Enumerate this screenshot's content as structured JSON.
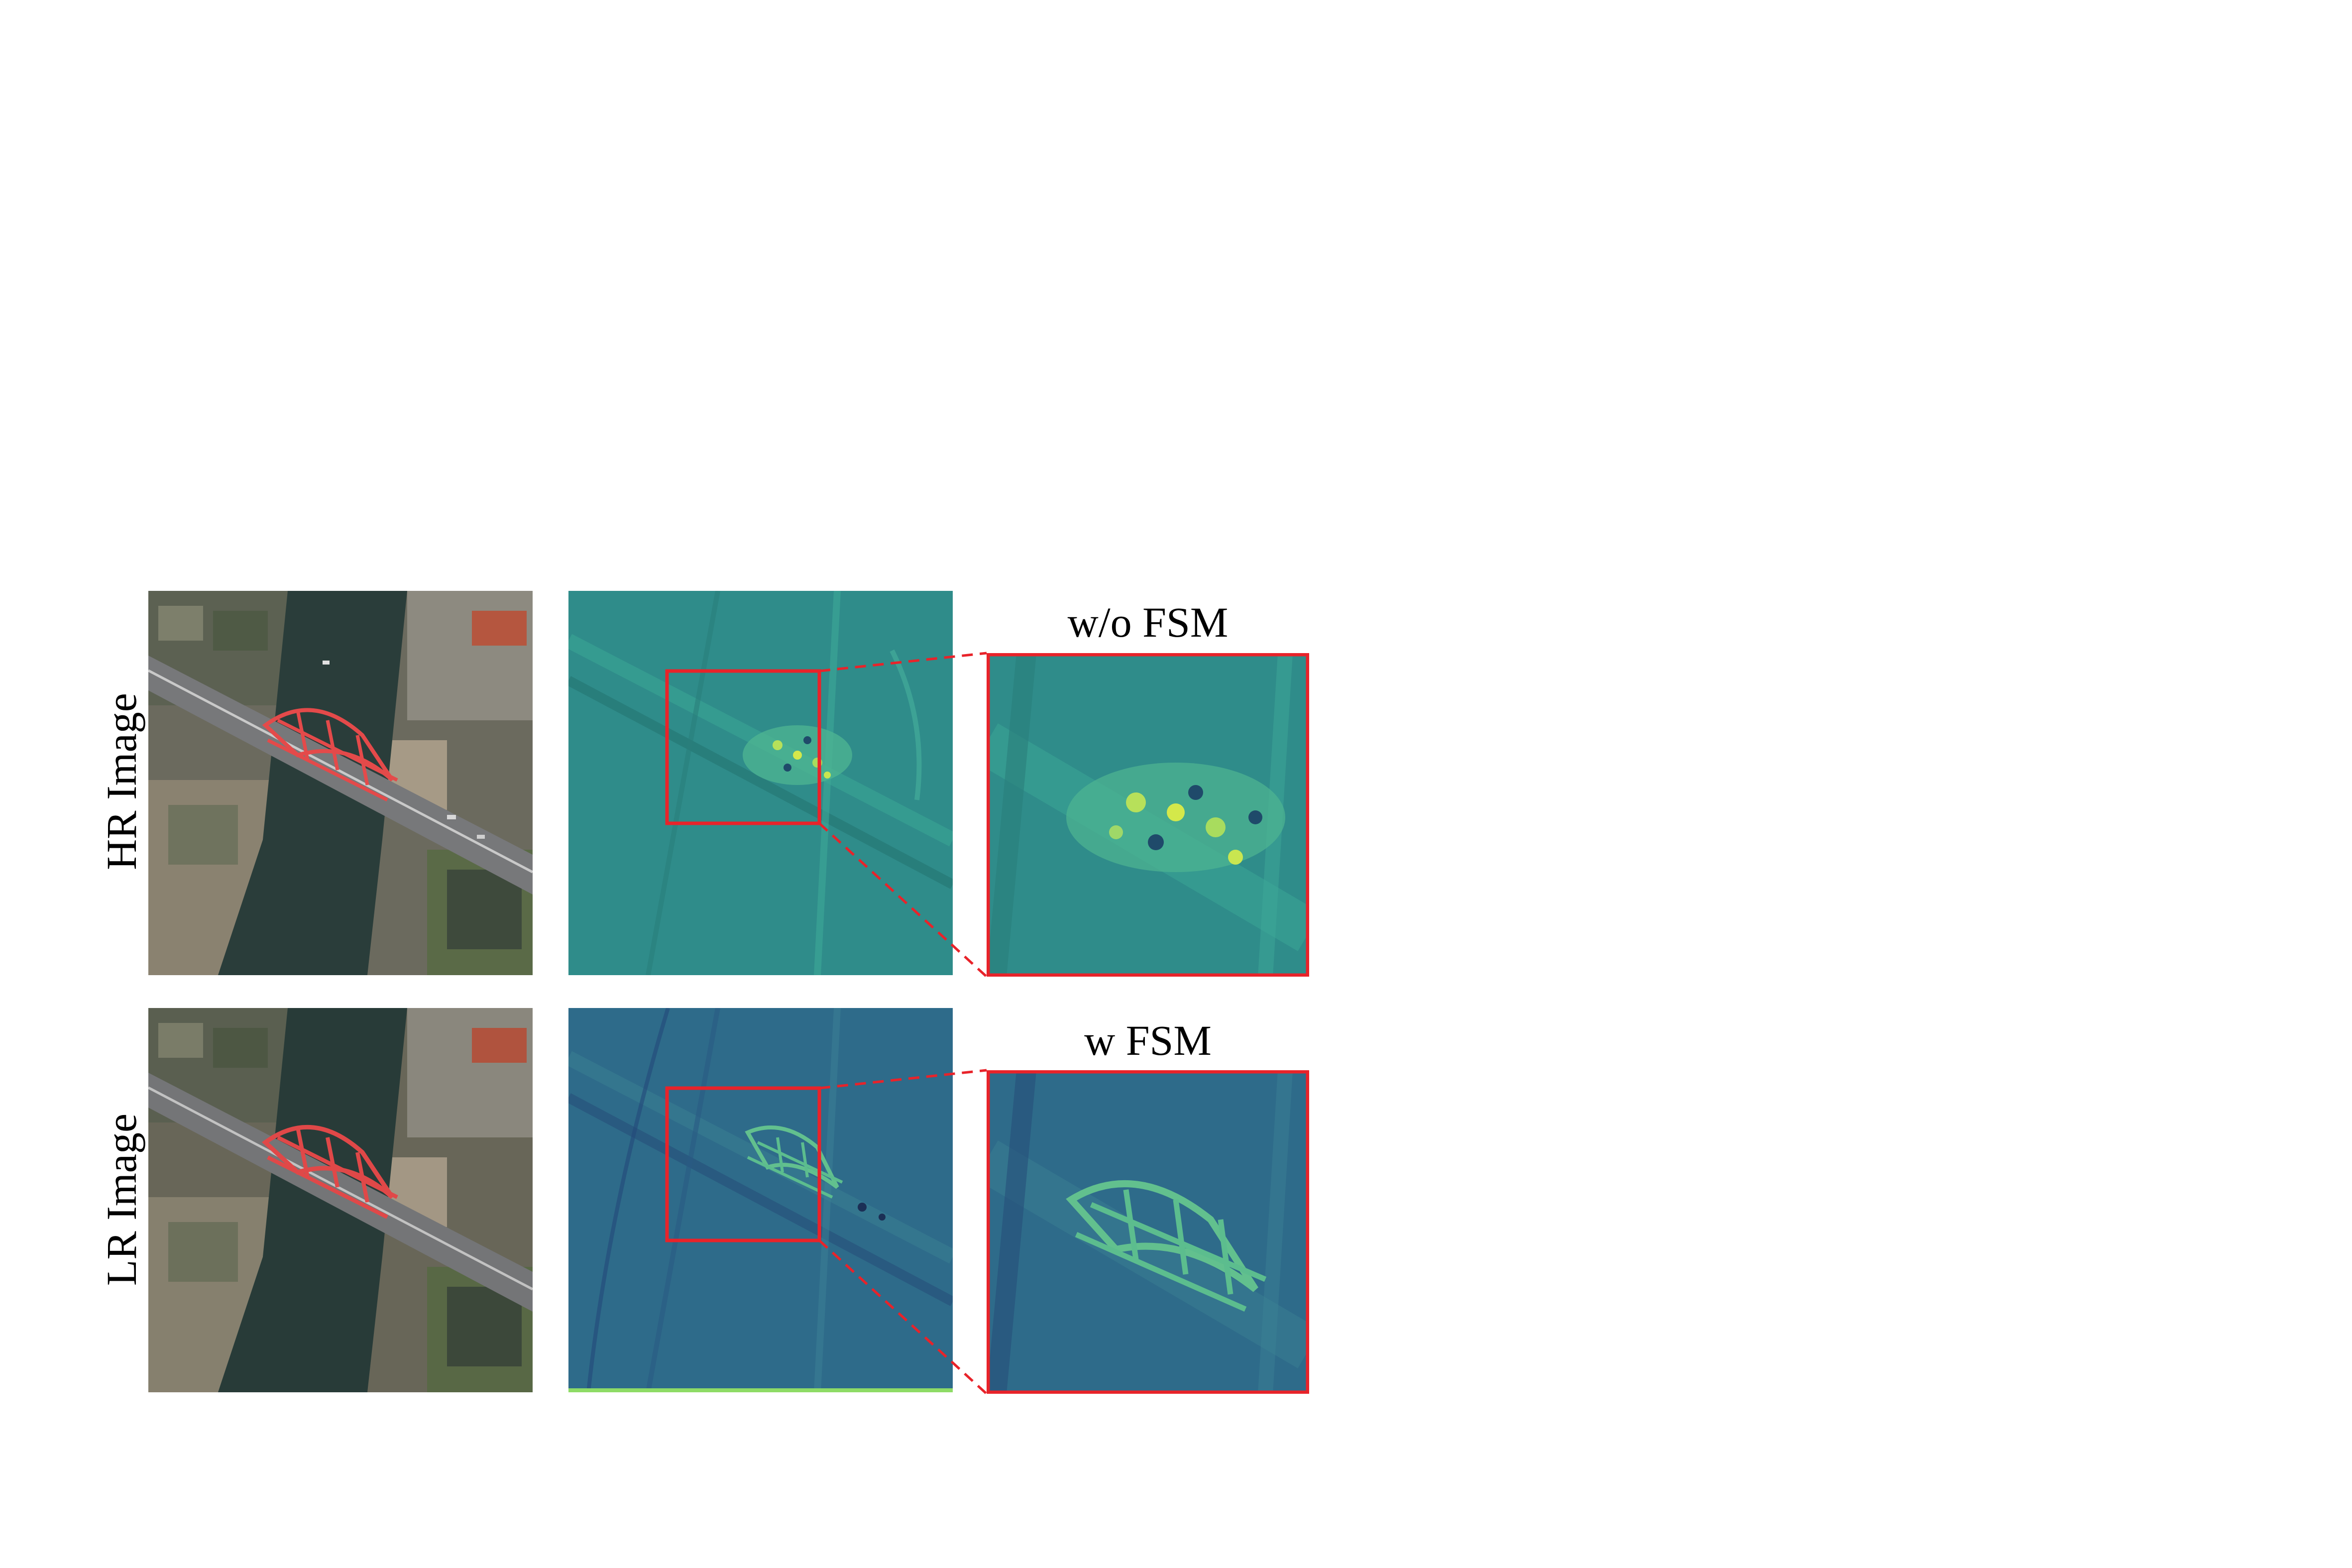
{
  "rows": [
    {
      "label": "HR Image",
      "zoom_caption": "w/o FSM"
    },
    {
      "label": "LR Image",
      "zoom_caption": "w FSM"
    }
  ],
  "colors": {
    "highlight_box": "#e8232a",
    "hr_feature_bg": "#2f8c8a",
    "lr_feature_bg": "#2e6b8a",
    "water": "#2a3d3a",
    "bridge_arch": "#e44a4a"
  }
}
